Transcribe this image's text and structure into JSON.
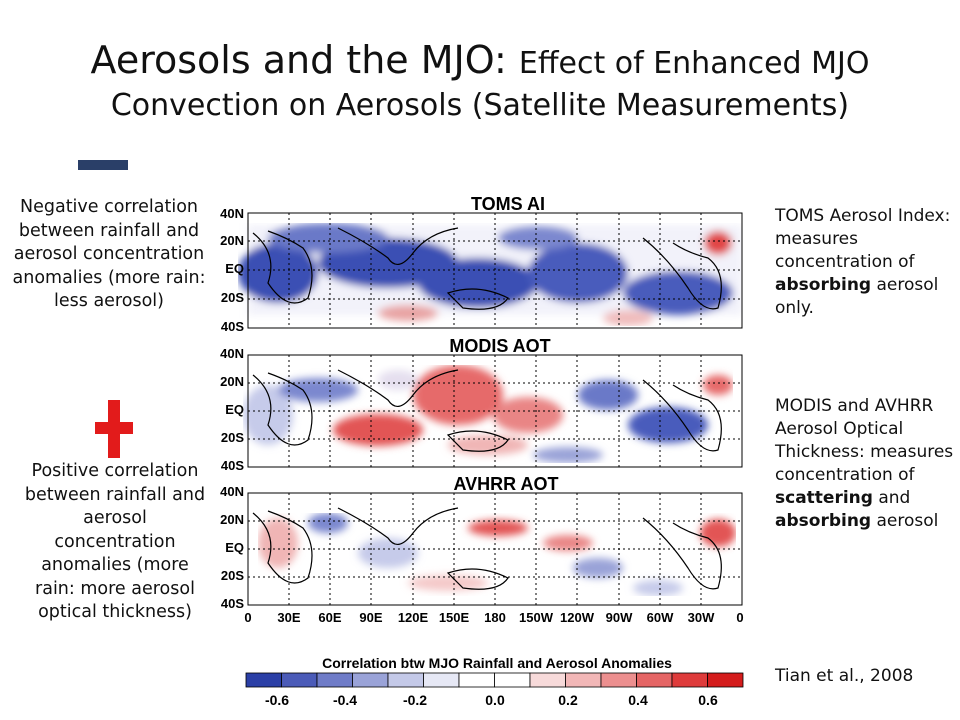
{
  "title": {
    "main": "Aerosols and the MJO:",
    "main_sub": "Effect of Enhanced MJO",
    "line2": "Convection on Aerosols (Satellite Measurements)"
  },
  "left": {
    "negative_text": "Negative correlation between rainfall and aerosol concentration anomalies (more rain: less aerosol)",
    "positive_text": "Positive correlation between rainfall and aerosol concentration anomalies (more rain: more aerosol optical thickness)"
  },
  "right": {
    "toms_pre": "TOMS Aerosol Index: measures concentration of ",
    "toms_bold": "absorbing",
    "toms_post": " aerosol only.",
    "modis_pre": "MODIS and AVHRR Aerosol Optical Thickness: measures concentration of ",
    "modis_bold1": "scattering",
    "modis_mid": " and ",
    "modis_bold2": "absorbing",
    "modis_post": " aerosol",
    "citation": "Tian et al., 2008"
  },
  "figure": {
    "panels": [
      "TOMS AI",
      "MODIS AOT",
      "AVHRR AOT"
    ],
    "lat_labels": [
      "40N",
      "20N",
      "EQ",
      "20S",
      "40S"
    ],
    "lon_labels": [
      "0",
      "30E",
      "60E",
      "90E",
      "120E",
      "150E",
      "180",
      "150W",
      "120W",
      "90W",
      "60W",
      "30W",
      "0"
    ],
    "colorbar_title": "Correlation btw MJO Rainfall and Aerosol Anomalies",
    "colorbar_ticks": [
      "-0.6",
      "-0.4",
      "-0.2",
      "0.0",
      "0.2",
      "0.4",
      "0.6"
    ],
    "colorbar_colors": [
      "#2b3fa6",
      "#4b5bb8",
      "#6f7cc8",
      "#9aa3d8",
      "#c4c9e8",
      "#e6e8f5",
      "#ffffff",
      "#ffffff",
      "#f7dada",
      "#f2b7b7",
      "#ec8f8f",
      "#e56565",
      "#de3b3b",
      "#d41c1c"
    ]
  },
  "colors": {
    "minus_sign": "#2a3f68",
    "plus_sign": "#e21b1b"
  }
}
